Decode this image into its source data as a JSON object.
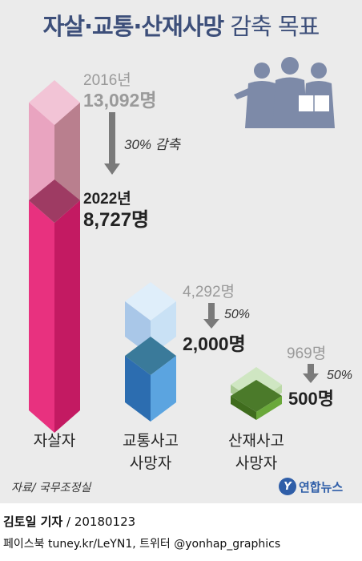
{
  "title": {
    "bold": "자살·교통·산재사망",
    "light": "감축 목표"
  },
  "chart_data": {
    "type": "bar",
    "categories": [
      "자살자",
      "교통사고 사망자",
      "산재사고 사망자"
    ],
    "category_lines": [
      [
        "자살자"
      ],
      [
        "교통사고",
        "사망자"
      ],
      [
        "산재사고",
        "사망자"
      ]
    ],
    "series": [
      {
        "name": "2016년",
        "values": [
          13092,
          4292,
          969
        ]
      },
      {
        "name": "2022년",
        "values": [
          8727,
          2000,
          500
        ]
      }
    ],
    "labels_2016": [
      "2016년\n13,092명",
      "4,292명",
      "969명"
    ],
    "labels_2022": [
      "2022년\n8,727명",
      "2,000명",
      "500명"
    ],
    "reduction_labels": [
      "30% 감축",
      "50%",
      "50%"
    ],
    "units": "명",
    "colors": {
      "suicide_front": "#e8317f",
      "suicide_side": "#c41a62",
      "suicide_ghost_front": "#e6a0bc",
      "suicide_ghost_side": "#b77d8d",
      "traffic_front": "#3f8fd0",
      "traffic_side": "#2c6db0",
      "traffic_ghost_front": "#c4dcf0",
      "traffic_ghost_side": "#9cbbdb",
      "industrial_front": "#5a8f2e",
      "industrial_side": "#3f6c1d",
      "industrial_ghost_front": "#cfe6c2"
    }
  },
  "year_2016": "2016년",
  "value_2016_suicide": "13,092명",
  "reduction_suicide": "30% 감축",
  "year_2022": "2022년",
  "value_2022_suicide": "8,727명",
  "value_2016_traffic": "4,292명",
  "reduction_traffic": "50%",
  "value_2022_traffic": "2,000명",
  "value_2016_industrial": "969명",
  "reduction_industrial": "50%",
  "value_2022_industrial": "500명",
  "cat_suicide": "자살자",
  "cat_traffic_1": "교통사고",
  "cat_traffic_2": "사망자",
  "cat_industrial_1": "산재사고",
  "cat_industrial_2": "사망자",
  "source": "자료/ 국무조정실",
  "logo_mark": "Y",
  "logo_name": "연합뉴스",
  "author_name": "김토일 기자",
  "author_date": " / 20180123",
  "social": "페이스북 tuney.kr/LeYN1, 트위터 @yonhap_graphics"
}
